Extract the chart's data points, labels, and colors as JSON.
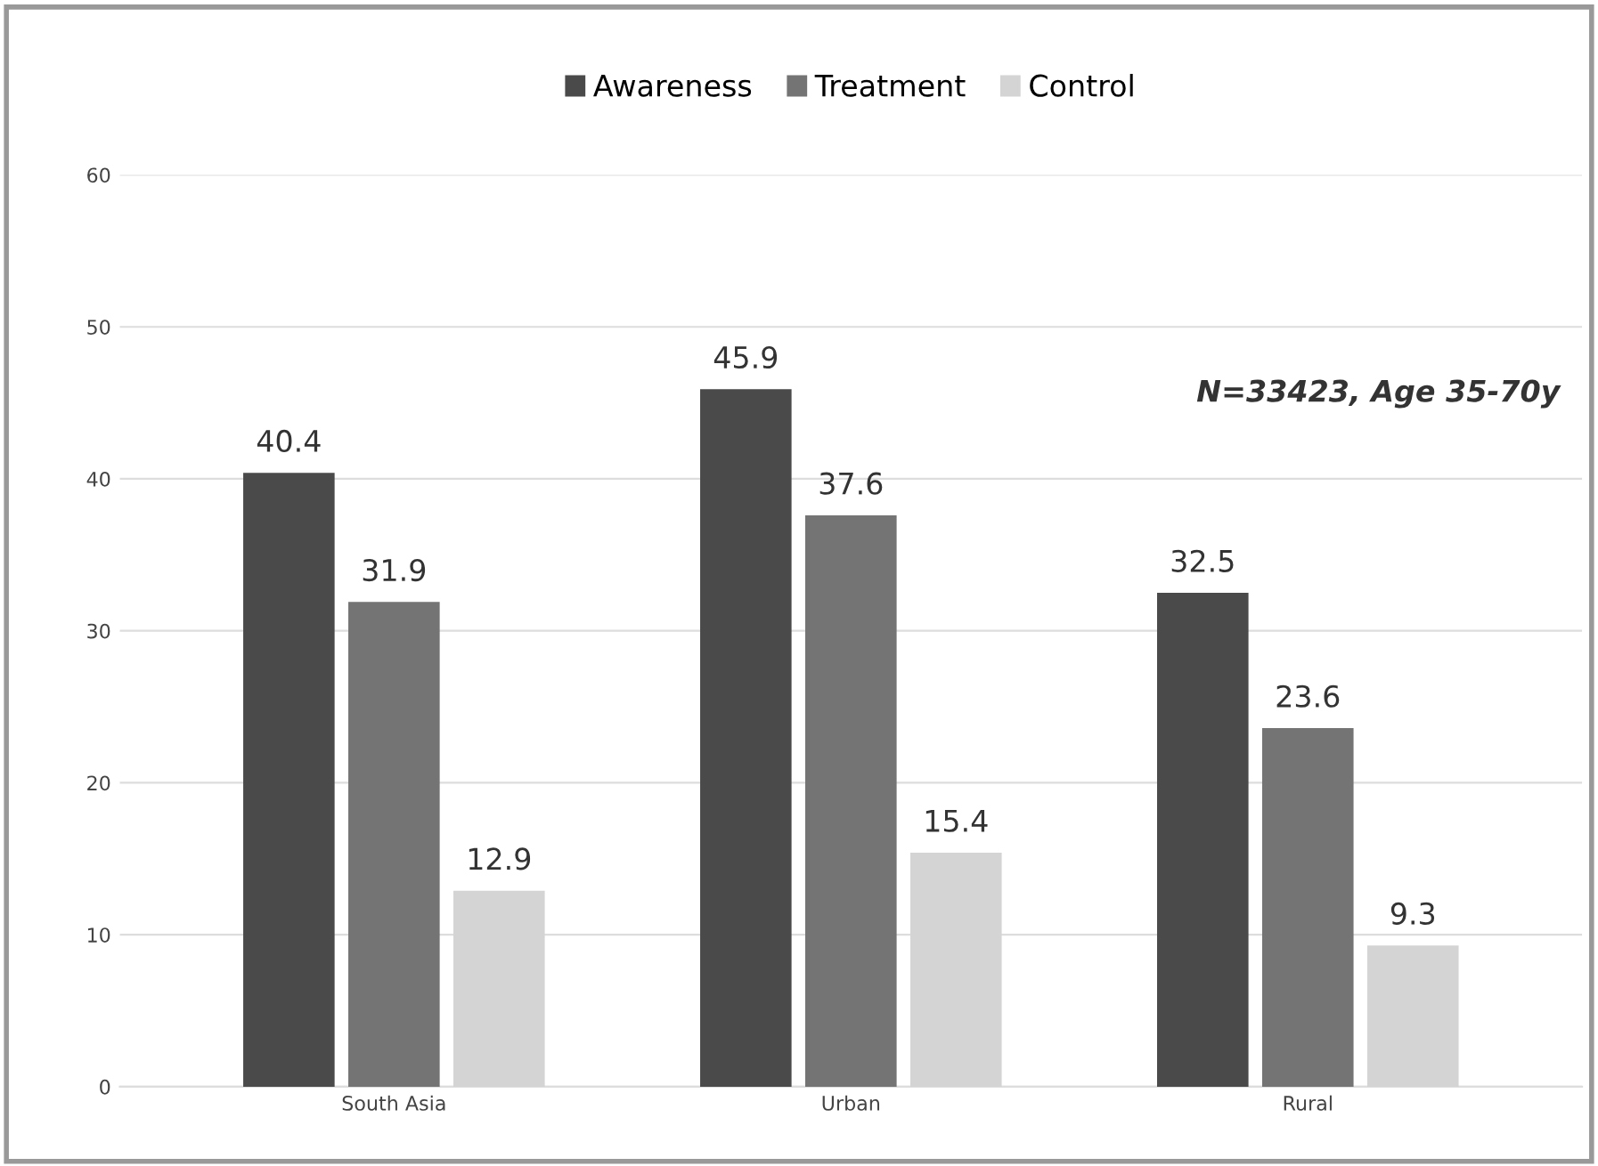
{
  "chart_data": {
    "type": "bar",
    "categories": [
      "South Asia",
      "Urban",
      "Rural"
    ],
    "series": [
      {
        "name": "Awareness",
        "color": "#4a4a4a",
        "values": [
          40.4,
          45.9,
          32.5
        ]
      },
      {
        "name": "Treatment",
        "color": "#747474",
        "values": [
          31.9,
          37.6,
          23.6
        ]
      },
      {
        "name": "Control",
        "color": "#d4d4d4",
        "values": [
          12.9,
          15.4,
          9.3
        ]
      }
    ],
    "ylim": [
      0,
      60
    ],
    "yticks": [
      0,
      10,
      20,
      30,
      40,
      50,
      60
    ],
    "grid": "y",
    "legend": "top",
    "data_labels": true,
    "annotations": [
      "N=33423, Age 35-70y"
    ]
  }
}
